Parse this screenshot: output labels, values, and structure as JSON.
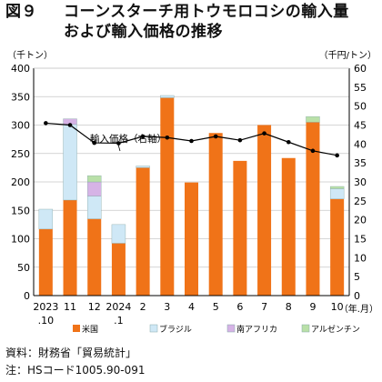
{
  "figure": {
    "label": "図９",
    "title_line1": "コーンスターチ用トウモロコシの輸入量",
    "title_line2": "および輸入価格の推移"
  },
  "source": {
    "line1": "資料：財務省「貿易統計」",
    "line2": "注：HSコード1005.90-091"
  },
  "chart_data": {
    "type": "bar",
    "stacked": true,
    "categories": [
      {
        "line1": "2023",
        "line2": ".10"
      },
      {
        "line1": "11",
        "line2": ""
      },
      {
        "line1": "12",
        "line2": ""
      },
      {
        "line1": "2024",
        "line2": ".1"
      },
      {
        "line1": "2",
        "line2": ""
      },
      {
        "line1": "3",
        "line2": ""
      },
      {
        "line1": "4",
        "line2": ""
      },
      {
        "line1": "5",
        "line2": ""
      },
      {
        "line1": "6",
        "line2": ""
      },
      {
        "line1": "7",
        "line2": ""
      },
      {
        "line1": "8",
        "line2": ""
      },
      {
        "line1": "9",
        "line2": ""
      },
      {
        "line1": "10",
        "line2": ""
      }
    ],
    "x_unit_label": "（年.月）",
    "series": [
      {
        "name": "米国",
        "color": "#f07318",
        "values": [
          117,
          168,
          135,
          92,
          225,
          348,
          199,
          286,
          237,
          300,
          242,
          305,
          170
        ]
      },
      {
        "name": "ブラジル",
        "color": "#cfe8f6",
        "values": [
          35,
          133,
          40,
          33,
          3,
          4,
          0,
          0,
          0,
          0,
          0,
          0,
          18
        ]
      },
      {
        "name": "南アフリカ",
        "color": "#d6b3e6",
        "values": [
          0,
          10,
          25,
          0,
          0,
          0,
          0,
          0,
          0,
          0,
          0,
          0,
          0
        ]
      },
      {
        "name": "アルゼンチン",
        "color": "#b9e0a8",
        "values": [
          0,
          0,
          11,
          0,
          0,
          0,
          0,
          0,
          0,
          0,
          0,
          10,
          4
        ]
      }
    ],
    "line_series": {
      "name": "輸入価格（右軸）",
      "label": "輸入価格（右軸）",
      "color": "#000000",
      "values": [
        45.5,
        45.0,
        40.3,
        40.2,
        42.0,
        41.7,
        40.8,
        42.0,
        41.0,
        42.8,
        40.5,
        38.2,
        37.0
      ]
    },
    "y_left": {
      "unit_label": "（千トン）",
      "min": 0,
      "max": 400,
      "step": 50
    },
    "y_right": {
      "unit_label": "（千円/トン）",
      "min": 0,
      "max": 60,
      "step": 5
    },
    "grid": "horizontal",
    "legend_position": "bottom"
  }
}
